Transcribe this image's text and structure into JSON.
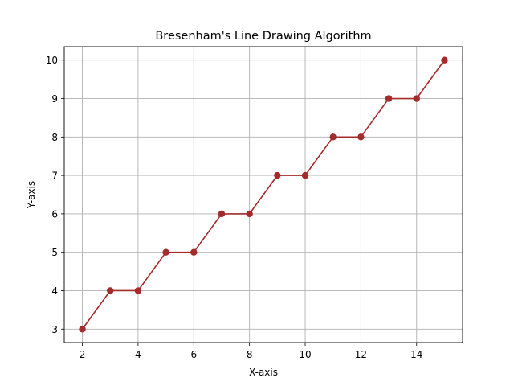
{
  "chart_data": {
    "type": "line",
    "title": "Bresenham's Line Drawing Algorithm",
    "xlabel": "X-axis",
    "ylabel": "Y-axis",
    "xlim": [
      1.35,
      15.65
    ],
    "ylim": [
      2.65,
      10.35
    ],
    "x_ticks": [
      2,
      4,
      6,
      8,
      10,
      12,
      14
    ],
    "y_ticks": [
      3,
      4,
      5,
      6,
      7,
      8,
      9,
      10
    ],
    "grid": true,
    "marker": "circle",
    "series": [
      {
        "x": [
          2,
          3,
          4,
          5,
          6,
          7,
          8,
          9,
          10,
          11,
          12,
          13,
          14,
          15
        ],
        "y": [
          3,
          4,
          4,
          5,
          5,
          6,
          6,
          7,
          7,
          8,
          8,
          9,
          9,
          10
        ],
        "color": "#a52a2a"
      }
    ]
  }
}
